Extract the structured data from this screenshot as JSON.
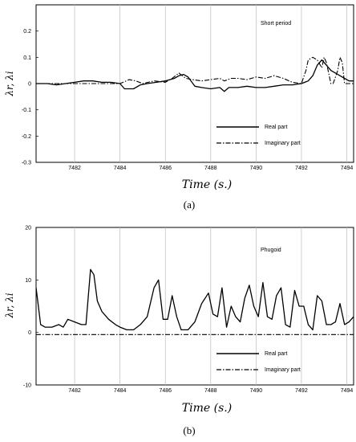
{
  "chart_data": [
    {
      "type": "line",
      "annotation": "Short period",
      "xlabel": "Time (s.)",
      "ylabel": "λr, λi",
      "caption": "(a)",
      "xlim": [
        7480.3,
        7494.3
      ],
      "ylim": [
        -0.3,
        0.3
      ],
      "xticks": [
        "7482",
        "7484",
        "7486",
        "7488",
        "7490",
        "7492",
        "7494"
      ],
      "yticks": [
        "0.2",
        "0.1",
        "0",
        "-0.1",
        "-0.2",
        "-0.3"
      ],
      "grid": true,
      "legend_position": "bottom-right",
      "series": [
        {
          "name": "Real part",
          "style": "solid",
          "x": [
            7480.3,
            7480.8,
            7481.2,
            7481.6,
            7482.0,
            7482.4,
            7482.8,
            7483.2,
            7483.6,
            7484.0,
            7484.2,
            7484.6,
            7484.9,
            7485.2,
            7485.6,
            7486.0,
            7486.4,
            7486.6,
            7486.8,
            7487.0,
            7487.3,
            7487.6,
            7488.0,
            7488.4,
            7488.6,
            7488.8,
            7489.2,
            7489.6,
            7490.0,
            7490.4,
            7490.8,
            7491.2,
            7491.6,
            7492.0,
            7492.3,
            7492.5,
            7492.7,
            7492.9,
            7493.1,
            7493.3,
            7493.5,
            7493.7,
            7493.9,
            7494.1,
            7494.3
          ],
          "y": [
            0.0,
            0.0,
            -0.005,
            0.0,
            0.005,
            0.01,
            0.01,
            0.005,
            0.005,
            0.0,
            -0.02,
            -0.02,
            -0.005,
            0.0,
            0.005,
            0.01,
            0.02,
            0.03,
            0.035,
            0.025,
            -0.01,
            -0.015,
            -0.02,
            -0.015,
            -0.03,
            -0.015,
            -0.015,
            -0.01,
            -0.015,
            -0.015,
            -0.01,
            -0.005,
            -0.005,
            0.0,
            0.01,
            0.03,
            0.07,
            0.09,
            0.07,
            0.05,
            0.04,
            0.03,
            0.02,
            0.01,
            0.01
          ]
        },
        {
          "name": "Imaginary part",
          "style": "dashdot",
          "x": [
            7480.3,
            7481.0,
            7482.0,
            7483.0,
            7484.0,
            7484.4,
            7484.7,
            7485.0,
            7485.5,
            7486.0,
            7486.3,
            7486.6,
            7486.9,
            7487.2,
            7487.6,
            7488.0,
            7488.4,
            7488.6,
            7488.9,
            7489.2,
            7489.6,
            7490.0,
            7490.4,
            7490.8,
            7491.2,
            7491.6,
            7492.0,
            7492.2,
            7492.3,
            7492.5,
            7492.7,
            7492.9,
            7493.0,
            7493.1,
            7493.3,
            7493.4,
            7493.6,
            7493.7,
            7493.8,
            7493.9,
            7494.1,
            7494.3
          ],
          "y": [
            0.0,
            0.0,
            0.0,
            0.0,
            0.0,
            0.015,
            0.01,
            0.0,
            0.01,
            0.005,
            0.02,
            0.04,
            0.02,
            0.015,
            0.01,
            0.015,
            0.02,
            0.01,
            0.02,
            0.02,
            0.015,
            0.025,
            0.02,
            0.03,
            0.02,
            0.005,
            0.0,
            0.05,
            0.09,
            0.1,
            0.09,
            0.06,
            0.1,
            0.08,
            0.0,
            0.0,
            0.05,
            0.1,
            0.08,
            0.0,
            0.0,
            0.0
          ]
        }
      ]
    },
    {
      "type": "line",
      "annotation": "Phugoid",
      "xlabel": "Time (s.)",
      "ylabel": "λr, λi",
      "caption": "(b)",
      "xlim": [
        7480.3,
        7494.3
      ],
      "ylim": [
        -10,
        20
      ],
      "xticks": [
        "7482",
        "7484",
        "7486",
        "7488",
        "7490",
        "7492",
        "7494"
      ],
      "yticks": [
        "20",
        "10",
        "0",
        "-10"
      ],
      "grid": true,
      "legend_position": "bottom-right",
      "series": [
        {
          "name": "Real part",
          "style": "solid",
          "x": [
            7480.3,
            7480.5,
            7480.7,
            7481.0,
            7481.3,
            7481.5,
            7481.7,
            7482.0,
            7482.3,
            7482.5,
            7482.7,
            7482.85,
            7483.0,
            7483.2,
            7483.5,
            7483.8,
            7484.0,
            7484.3,
            7484.6,
            7484.9,
            7485.2,
            7485.5,
            7485.7,
            7485.9,
            7486.1,
            7486.3,
            7486.5,
            7486.7,
            7487.0,
            7487.3,
            7487.6,
            7487.9,
            7488.1,
            7488.3,
            7488.5,
            7488.7,
            7488.9,
            7489.1,
            7489.3,
            7489.5,
            7489.7,
            7489.9,
            7490.1,
            7490.3,
            7490.5,
            7490.7,
            7490.9,
            7491.1,
            7491.3,
            7491.5,
            7491.7,
            7491.9,
            7492.1,
            7492.3,
            7492.5,
            7492.7,
            7492.9,
            7493.1,
            7493.3,
            7493.5,
            7493.7,
            7493.9,
            7494.1,
            7494.3
          ],
          "y": [
            8.5,
            1.5,
            1.0,
            1.0,
            1.5,
            1.0,
            2.5,
            2.0,
            1.5,
            1.5,
            12.0,
            11.0,
            6.0,
            4.0,
            2.5,
            1.5,
            1.0,
            0.5,
            0.5,
            1.5,
            3.0,
            8.5,
            10.0,
            2.5,
            2.5,
            7.0,
            3.0,
            0.5,
            0.5,
            2.0,
            5.5,
            7.5,
            3.5,
            3.0,
            8.5,
            1.0,
            5.0,
            3.0,
            2.0,
            6.5,
            9.0,
            5.0,
            3.0,
            9.5,
            3.0,
            2.5,
            7.0,
            8.5,
            1.5,
            1.0,
            8.0,
            5.0,
            5.0,
            1.5,
            0.5,
            7.0,
            6.0,
            1.5,
            1.5,
            2.0,
            5.5,
            1.5,
            2.0,
            3.0
          ]
        },
        {
          "name": "Imaginary part",
          "style": "dashdot",
          "x": [
            7480.3,
            7494.3
          ],
          "y": [
            -0.4,
            -0.4
          ]
        }
      ]
    }
  ]
}
